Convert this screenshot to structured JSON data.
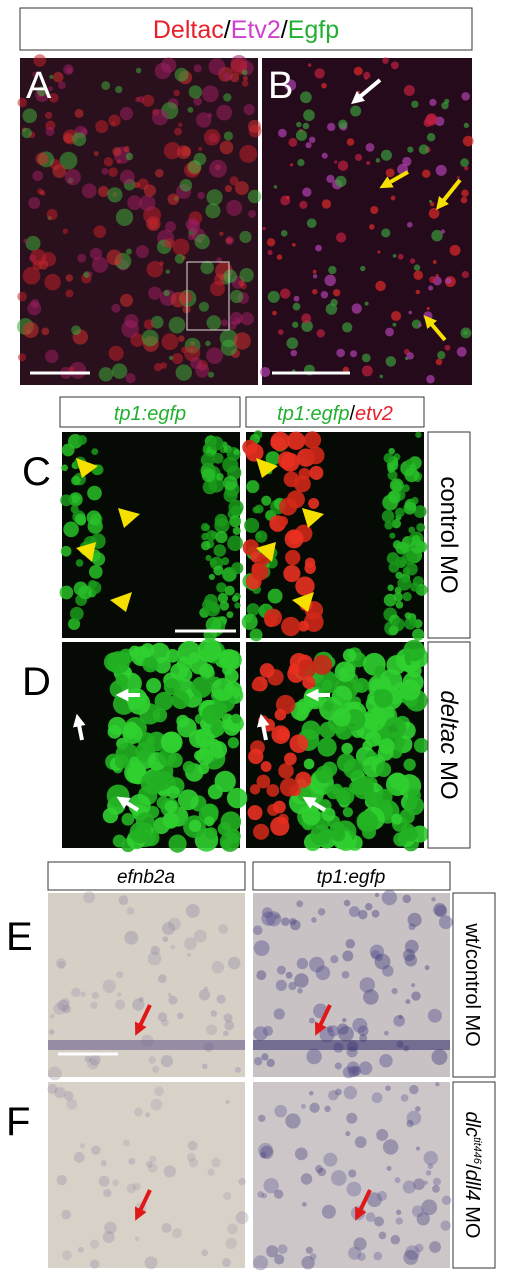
{
  "header": {
    "title": [
      "Deltac",
      "/",
      "Etv2",
      "/",
      "Egfp"
    ]
  },
  "panel_labels": [
    "A",
    "B",
    "C",
    "D",
    "E",
    "F"
  ],
  "fluorescence": {
    "columns": [
      [
        "tp1:egfp"
      ],
      [
        "tp1:egfp",
        "/",
        "etv2"
      ]
    ],
    "rows": [
      [
        "control MO"
      ],
      [
        "deltac",
        " MO"
      ]
    ]
  },
  "in_situ": {
    "columns": [
      "efnb2a",
      "tp1:egfp"
    ],
    "rows": [
      [
        "wt/control MO"
      ],
      [
        "dlc",
        "tit446",
        "/",
        "dll4",
        " MO"
      ]
    ]
  }
}
